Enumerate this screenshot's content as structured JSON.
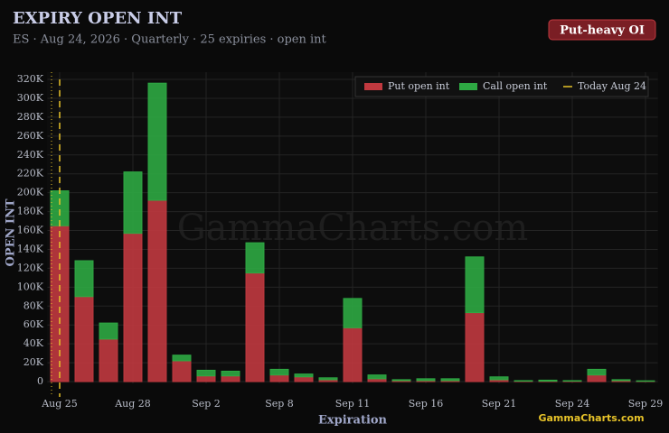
{
  "header": {
    "title": "EXPIRY OPEN INT",
    "subtitle": "ES · Aug 24, 2026 · Quarterly · 25 expiries · open int",
    "badge": "Put-heavy OI"
  },
  "watermark": "GammaCharts.com",
  "logo": "GammaCharts.com",
  "chart_data": {
    "type": "stacked_bar",
    "xlabel": "Expiration",
    "ylabel": "OPEN INT",
    "categories": [
      "Aug 25",
      null,
      null,
      "Aug 28",
      null,
      null,
      "Sep 2",
      null,
      null,
      "Sep 8",
      null,
      null,
      "Sep 11",
      null,
      null,
      "Sep 16",
      null,
      null,
      "Sep 21",
      null,
      null,
      "Sep 24",
      null,
      null,
      "Sep 29"
    ],
    "series": [
      {
        "name": "Put open int",
        "color": "#c0393f",
        "values": [
          165000,
          90000,
          45000,
          157000,
          192000,
          22000,
          6000,
          6000,
          115000,
          7000,
          5000,
          2000,
          57000,
          3000,
          1000,
          1000,
          1000,
          73000,
          2000,
          500,
          500,
          500,
          7000,
          1000,
          300
        ]
      },
      {
        "name": "Call open int",
        "color": "#2ea843",
        "values": [
          37000,
          38000,
          17000,
          65000,
          124000,
          6000,
          6000,
          5000,
          32000,
          6000,
          3000,
          2000,
          31000,
          4000,
          1000,
          2000,
          2000,
          59000,
          3000,
          500,
          1000,
          500,
          6000,
          1000,
          500
        ]
      }
    ],
    "annotation": "Today Aug 24",
    "annotation_color": "#e6c229",
    "ylim": [
      0,
      320000
    ],
    "yticks": [
      {
        "value": 0,
        "label": "0"
      },
      {
        "value": 20000,
        "label": "20K"
      },
      {
        "value": 40000,
        "label": "40K"
      },
      {
        "value": 60000,
        "label": "60K"
      },
      {
        "value": 80000,
        "label": "80K"
      },
      {
        "value": 100000,
        "label": "100K"
      },
      {
        "value": 120000,
        "label": "120K"
      },
      {
        "value": 140000,
        "label": "140K"
      },
      {
        "value": 160000,
        "label": "160K"
      },
      {
        "value": 180000,
        "label": "180K"
      },
      {
        "value": 200000,
        "label": "200K"
      },
      {
        "value": 220000,
        "label": "220K"
      },
      {
        "value": 240000,
        "label": "240K"
      },
      {
        "value": 260000,
        "label": "260K"
      },
      {
        "value": 280000,
        "label": "280K"
      },
      {
        "value": 300000,
        "label": "300K"
      },
      {
        "value": 320000,
        "label": "320K"
      }
    ],
    "grid": true,
    "legend": "top-right"
  }
}
